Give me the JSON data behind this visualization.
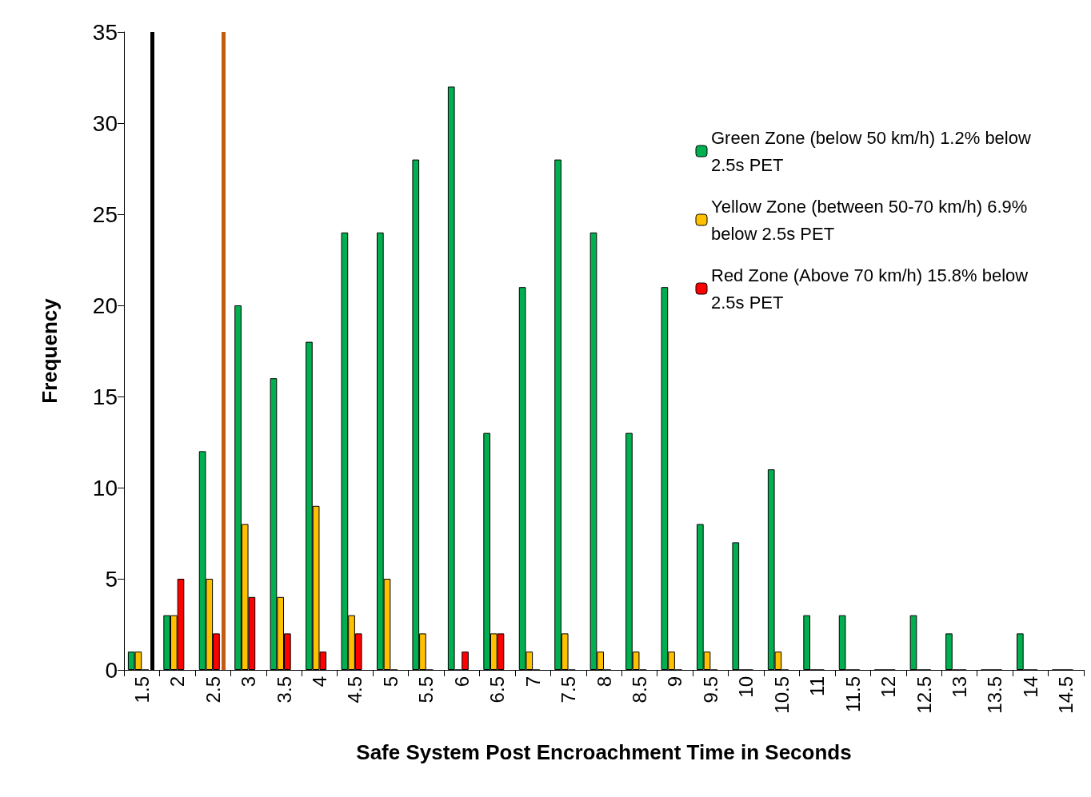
{
  "chart_data": {
    "type": "bar",
    "xlabel": "Safe System Post Encroachment Time in Seconds",
    "ylabel": "Frequency",
    "categories": [
      "1.5",
      "2",
      "2.5",
      "3",
      "3.5",
      "4",
      "4.5",
      "5",
      "5.5",
      "6",
      "6.5",
      "7",
      "7.5",
      "8",
      "8.5",
      "9",
      "9.5",
      "10",
      "10.5",
      "11",
      "11.5",
      "12",
      "12.5",
      "13",
      "13.5",
      "14",
      "14.5"
    ],
    "series": [
      {
        "name": "Green Zone (below 50 km/h) 1.2% below 2.5s PET",
        "color": "#00b050",
        "values": [
          1,
          3,
          12,
          20,
          16,
          18,
          24,
          24,
          28,
          32,
          13,
          21,
          28,
          24,
          13,
          21,
          8,
          7,
          11,
          3,
          3,
          0,
          3,
          2,
          0,
          2,
          0
        ]
      },
      {
        "name": "Yellow Zone (between 50-70 km/h) 6.9% below 2.5s PET",
        "color": "#ffc000",
        "values": [
          1,
          3,
          5,
          8,
          4,
          9,
          3,
          5,
          2,
          0,
          2,
          1,
          2,
          1,
          1,
          1,
          1,
          0,
          1,
          0,
          0,
          0,
          0,
          0,
          0,
          0,
          0
        ]
      },
      {
        "name": "Red Zone (Above 70 km/h) 15.8% below 2.5s PET",
        "color": "#ff0000",
        "values": [
          0,
          5,
          2,
          4,
          2,
          1,
          2,
          0,
          0,
          1,
          2,
          0,
          0,
          0,
          0,
          0,
          0,
          0,
          0,
          0,
          0,
          0,
          0,
          0,
          0,
          0,
          0
        ]
      }
    ],
    "ylim": [
      0,
      35
    ],
    "yticks": [
      0,
      5,
      10,
      15,
      20,
      25,
      30,
      35
    ],
    "grid": false,
    "legend": "top right",
    "ref_lines": [
      {
        "axis": "x",
        "value": "1.5",
        "color": "#000000"
      },
      {
        "axis": "x",
        "value": "2.5",
        "color": "#c55a11"
      }
    ]
  }
}
